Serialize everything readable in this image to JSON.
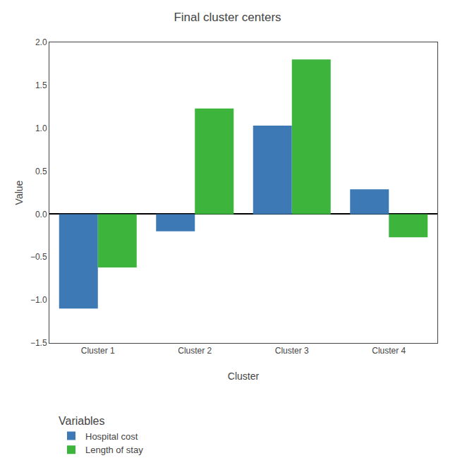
{
  "chart_data": {
    "type": "bar",
    "title": "Final cluster centers",
    "xlabel": "Cluster",
    "ylabel": "Value",
    "categories": [
      "Cluster 1",
      "Cluster 2",
      "Cluster 3",
      "Cluster 4"
    ],
    "series": [
      {
        "name": "Hospital cost",
        "color": "#3d7ab5",
        "values": [
          -1.1,
          -0.2,
          1.03,
          0.29
        ]
      },
      {
        "name": "Length of stay",
        "color": "#3db53d",
        "values": [
          -0.62,
          1.23,
          1.8,
          -0.27
        ]
      }
    ],
    "ylim": [
      -1.5,
      2.0
    ],
    "yticks": [
      {
        "value": -1.5,
        "label": "−1.5"
      },
      {
        "value": -1.0,
        "label": "−1.0"
      },
      {
        "value": -0.5,
        "label": "−0.5"
      },
      {
        "value": 0.0,
        "label": "0.0"
      },
      {
        "value": 0.5,
        "label": "0.5"
      },
      {
        "value": 1.0,
        "label": "1.0"
      },
      {
        "value": 1.5,
        "label": "1.5"
      },
      {
        "value": 2.0,
        "label": "2.0"
      }
    ],
    "grid": false,
    "legend": "bottom",
    "legend_title": "Variables"
  }
}
